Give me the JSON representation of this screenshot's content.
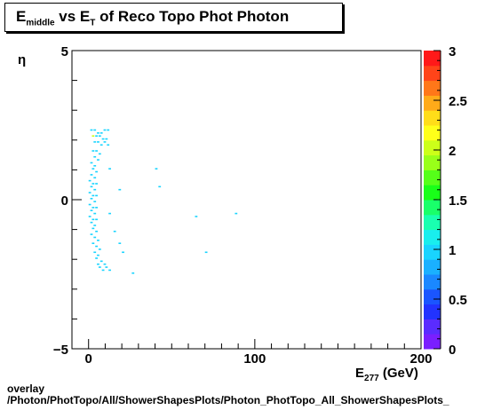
{
  "title": {
    "main": "E",
    "main_sub": "middle",
    "mid": " vs E",
    "mid_sub": "T",
    "tail": " of Reco Topo Phot Photon"
  },
  "footer": {
    "line1": "overlay",
    "line2": "/Photon/PhotTopo/All/ShowerShapesPlots/Photon_PhotTopo_All_ShowerShapesPlots_"
  },
  "chart_data": {
    "type": "heatmap",
    "title": "E_middle vs E_T of Reco Topo Phot Photon",
    "xlabel": "E_277 (GeV)",
    "ylabel": "η",
    "xlim": [
      -10,
      200
    ],
    "ylim": [
      -5,
      5
    ],
    "x_ticks": [
      0,
      100,
      200
    ],
    "y_ticks": [
      -5,
      0,
      5
    ],
    "colorbar": {
      "min": 0,
      "max": 3,
      "ticks": [
        "0",
        "0.5",
        "1",
        "1.5",
        "2",
        "2.5",
        "3"
      ]
    },
    "cells": [
      [
        1,
        2.3,
        1
      ],
      [
        3,
        2.3,
        1
      ],
      [
        5,
        2.2,
        1
      ],
      [
        7,
        2.2,
        1
      ],
      [
        9,
        2.3,
        1
      ],
      [
        11,
        2.3,
        1
      ],
      [
        2,
        2.1,
        2
      ],
      [
        4,
        2.1,
        1
      ],
      [
        6,
        2.1,
        1
      ],
      [
        8,
        2.0,
        1
      ],
      [
        10,
        2.0,
        1
      ],
      [
        3,
        1.9,
        1
      ],
      [
        5,
        1.9,
        1
      ],
      [
        7,
        1.8,
        1
      ],
      [
        9,
        1.9,
        1
      ],
      [
        11,
        1.8,
        1
      ],
      [
        2,
        1.6,
        1
      ],
      [
        4,
        1.6,
        1
      ],
      [
        6,
        1.5,
        1
      ],
      [
        3,
        1.4,
        1
      ],
      [
        5,
        1.3,
        1
      ],
      [
        1,
        1.2,
        1
      ],
      [
        3,
        1.1,
        1
      ],
      [
        2,
        1.0,
        1
      ],
      [
        4,
        0.9,
        1
      ],
      [
        1,
        0.8,
        1
      ],
      [
        3,
        0.7,
        1
      ],
      [
        0,
        0.6,
        1
      ],
      [
        2,
        0.5,
        1
      ],
      [
        4,
        0.5,
        1
      ],
      [
        1,
        0.4,
        1
      ],
      [
        3,
        0.3,
        1
      ],
      [
        0,
        0.2,
        1
      ],
      [
        2,
        0.1,
        1
      ],
      [
        4,
        0.1,
        1
      ],
      [
        1,
        0.0,
        1
      ],
      [
        3,
        -0.1,
        1
      ],
      [
        0,
        -0.2,
        1
      ],
      [
        2,
        -0.3,
        1
      ],
      [
        4,
        -0.3,
        1
      ],
      [
        1,
        -0.4,
        1
      ],
      [
        3,
        -0.5,
        1
      ],
      [
        0,
        -0.6,
        1
      ],
      [
        2,
        -0.7,
        1
      ],
      [
        4,
        -0.7,
        1
      ],
      [
        1,
        -0.8,
        1
      ],
      [
        3,
        -0.9,
        1
      ],
      [
        2,
        -1.0,
        1
      ],
      [
        4,
        -1.1,
        1
      ],
      [
        1,
        -1.2,
        1
      ],
      [
        3,
        -1.3,
        1
      ],
      [
        5,
        -1.4,
        1
      ],
      [
        2,
        -1.5,
        1
      ],
      [
        4,
        -1.6,
        1
      ],
      [
        6,
        -1.7,
        1
      ],
      [
        3,
        -1.8,
        1
      ],
      [
        5,
        -1.9,
        1
      ],
      [
        4,
        -2.0,
        1
      ],
      [
        7,
        -2.1,
        1
      ],
      [
        5,
        -2.2,
        1
      ],
      [
        9,
        -2.2,
        1
      ],
      [
        6,
        -2.3,
        1
      ],
      [
        10,
        -2.3,
        1
      ],
      [
        12,
        -2.4,
        1
      ],
      [
        8,
        -2.4,
        1
      ],
      [
        12,
        -0.5,
        1
      ],
      [
        15,
        -1.1,
        1
      ],
      [
        18,
        -1.5,
        1
      ],
      [
        18,
        0.3,
        1
      ],
      [
        12,
        1.0,
        1
      ],
      [
        20,
        -1.8,
        1
      ],
      [
        26,
        -2.5,
        1
      ],
      [
        40,
        1.0,
        1
      ],
      [
        42,
        0.4,
        1
      ],
      [
        64,
        -0.6,
        1
      ],
      [
        70,
        -1.8,
        1
      ],
      [
        88,
        -0.5,
        1
      ]
    ]
  }
}
